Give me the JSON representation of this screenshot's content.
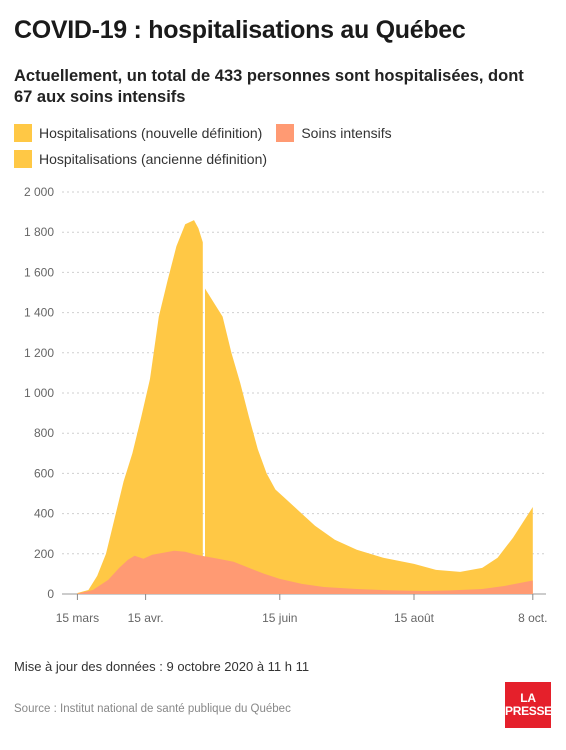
{
  "header": {
    "title": "COVID-19 : hospitalisations au Québec",
    "subtitle": "Actuellement, un total de 433 personnes sont hospitalisées, dont 67 aux soins intensifs"
  },
  "legend": [
    {
      "label": "Hospitalisations (nouvelle définition)",
      "color": "#ffc845"
    },
    {
      "label": "Soins intensifs",
      "color": "#ff9a73"
    },
    {
      "label": "Hospitalisations (ancienne définition)",
      "color": "#ffc845"
    }
  ],
  "footer": {
    "updated": "Mise à jour des données : 9 octobre 2020 à 11 h 11",
    "source": "Source : Institut national de santé publique du Québec",
    "logo_line1": "LA",
    "logo_line2": "PRESSE",
    "logo_color": "#e5202b"
  },
  "chart_data": {
    "type": "area",
    "x_tick_labels": [
      "15 mars",
      "15 avr.",
      "15 juin",
      "15 août",
      "8 oct."
    ],
    "x_tick_dates": [
      "2020-03-15",
      "2020-04-15",
      "2020-06-15",
      "2020-08-15",
      "2020-10-08"
    ],
    "y_tick_labels": [
      "0",
      "200",
      "400",
      "600",
      "800",
      "1 000",
      "1 200",
      "1 400",
      "1 600",
      "1 800",
      "2 000"
    ],
    "ylim": [
      0,
      2000
    ],
    "grid": true,
    "gap_between_definitions": "2020-05-11",
    "series": [
      {
        "name": "Hospitalisations (ancienne définition)",
        "color": "#ffc845",
        "points": [
          [
            "2020-03-15",
            5
          ],
          [
            "2020-03-20",
            20
          ],
          [
            "2020-03-24",
            90
          ],
          [
            "2020-03-28",
            200
          ],
          [
            "2020-04-01",
            380
          ],
          [
            "2020-04-05",
            560
          ],
          [
            "2020-04-09",
            700
          ],
          [
            "2020-04-13",
            880
          ],
          [
            "2020-04-17",
            1070
          ],
          [
            "2020-04-21",
            1380
          ],
          [
            "2020-04-25",
            1560
          ],
          [
            "2020-04-29",
            1730
          ],
          [
            "2020-05-03",
            1840
          ],
          [
            "2020-05-07",
            1860
          ],
          [
            "2020-05-09",
            1820
          ],
          [
            "2020-05-11",
            1750
          ]
        ]
      },
      {
        "name": "Hospitalisations (nouvelle définition)",
        "color": "#ffc845",
        "points": [
          [
            "2020-05-12",
            1520
          ],
          [
            "2020-05-16",
            1450
          ],
          [
            "2020-05-20",
            1380
          ],
          [
            "2020-05-24",
            1200
          ],
          [
            "2020-05-28",
            1050
          ],
          [
            "2020-06-01",
            880
          ],
          [
            "2020-06-05",
            720
          ],
          [
            "2020-06-09",
            600
          ],
          [
            "2020-06-13",
            520
          ],
          [
            "2020-06-17",
            480
          ],
          [
            "2020-06-23",
            420
          ],
          [
            "2020-07-01",
            340
          ],
          [
            "2020-07-10",
            270
          ],
          [
            "2020-07-20",
            220
          ],
          [
            "2020-08-01",
            180
          ],
          [
            "2020-08-15",
            150
          ],
          [
            "2020-08-25",
            120
          ],
          [
            "2020-09-05",
            110
          ],
          [
            "2020-09-15",
            130
          ],
          [
            "2020-09-22",
            180
          ],
          [
            "2020-09-29",
            280
          ],
          [
            "2020-10-08",
            433
          ]
        ]
      },
      {
        "name": "Soins intensifs",
        "color": "#ff9a73",
        "points": [
          [
            "2020-03-15",
            2
          ],
          [
            "2020-03-22",
            20
          ],
          [
            "2020-03-29",
            70
          ],
          [
            "2020-04-03",
            130
          ],
          [
            "2020-04-07",
            170
          ],
          [
            "2020-04-10",
            190
          ],
          [
            "2020-04-14",
            175
          ],
          [
            "2020-04-18",
            195
          ],
          [
            "2020-04-23",
            205
          ],
          [
            "2020-04-28",
            215
          ],
          [
            "2020-05-03",
            210
          ],
          [
            "2020-05-08",
            195
          ],
          [
            "2020-05-13",
            185
          ],
          [
            "2020-05-18",
            175
          ],
          [
            "2020-05-25",
            160
          ],
          [
            "2020-06-01",
            130
          ],
          [
            "2020-06-08",
            100
          ],
          [
            "2020-06-15",
            75
          ],
          [
            "2020-06-25",
            50
          ],
          [
            "2020-07-05",
            35
          ],
          [
            "2020-07-20",
            25
          ],
          [
            "2020-08-05",
            18
          ],
          [
            "2020-08-20",
            15
          ],
          [
            "2020-09-01",
            18
          ],
          [
            "2020-09-15",
            25
          ],
          [
            "2020-09-25",
            40
          ],
          [
            "2020-10-08",
            67
          ]
        ]
      }
    ]
  }
}
